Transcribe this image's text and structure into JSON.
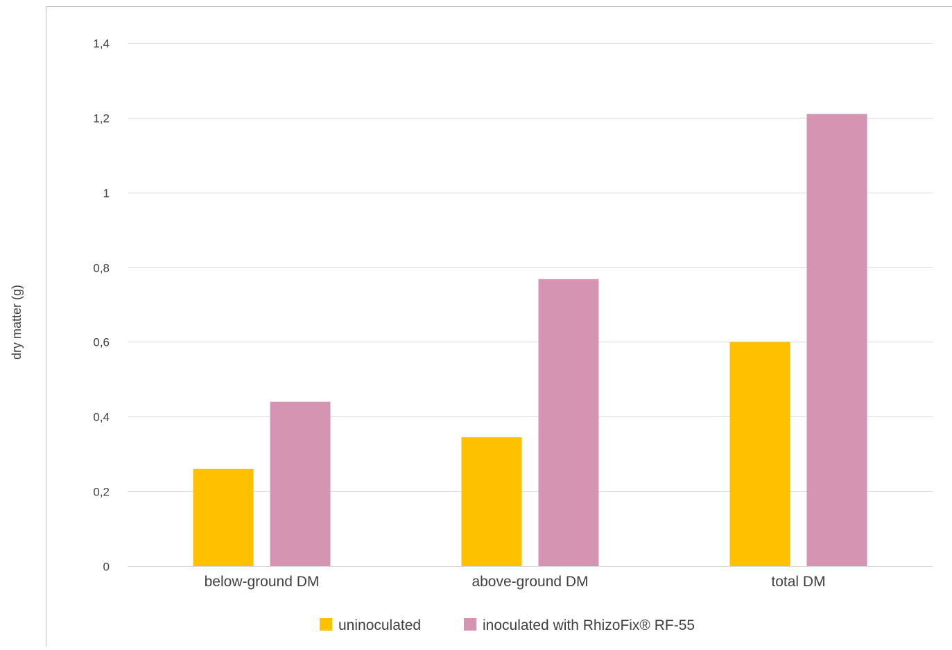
{
  "chart_data": {
    "type": "bar",
    "categories": [
      "below-ground DM",
      "above-ground DM",
      "total DM"
    ],
    "series": [
      {
        "name": "uninoculated",
        "values": [
          0.26,
          0.345,
          0.6
        ],
        "color": "#FFC000"
      },
      {
        "name": "inoculated with RhizoFix® RF-55",
        "values": [
          0.44,
          0.768,
          1.21
        ],
        "color": "#D494B2"
      }
    ],
    "title": "",
    "xlabel": "",
    "ylabel": "dry matter (g)",
    "ylim": [
      0,
      1.4
    ],
    "yticks": [
      0,
      0.2,
      0.4,
      0.6,
      0.8,
      1,
      1.2,
      1.4
    ],
    "ytick_labels": [
      "0",
      "0,2",
      "0,4",
      "0,6",
      "0,8",
      "1",
      "1,2",
      "1,4"
    ],
    "grid": true,
    "legend_position": "bottom",
    "colors": {
      "gridline": "#D9D9D9",
      "text": "#404040",
      "frame": "#BFBFBF"
    }
  }
}
